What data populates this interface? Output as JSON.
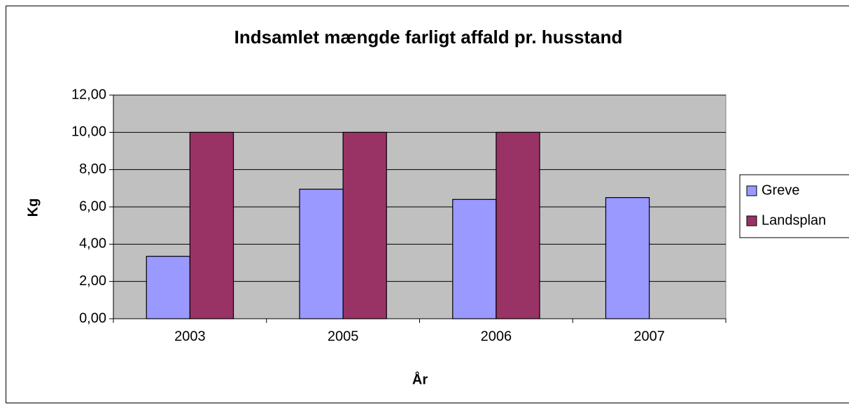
{
  "chart_data": {
    "type": "bar",
    "title": "Indsamlet mængde farligt affald pr. husstand",
    "y_label": "Kg",
    "x_label": "År",
    "categories": [
      "2003",
      "2005",
      "2006",
      "2007"
    ],
    "series": [
      {
        "name": "Greve",
        "color": "#9999ff",
        "values": [
          3.35,
          6.95,
          6.4,
          6.5
        ]
      },
      {
        "name": "Landsplan",
        "color": "#993366",
        "values": [
          10,
          10,
          10,
          null
        ]
      }
    ],
    "ylim": [
      0,
      12
    ],
    "yticks": [
      {
        "value": 0,
        "label": "0,00"
      },
      {
        "value": 2,
        "label": "2,00"
      },
      {
        "value": 4,
        "label": "4,00"
      },
      {
        "value": 6,
        "label": "6,00"
      },
      {
        "value": 8,
        "label": "8,00"
      },
      {
        "value": 10,
        "label": "10,00"
      },
      {
        "value": 12,
        "label": "12,00"
      }
    ],
    "grid": true,
    "plot_background": "#c0c0c0",
    "legend": "right"
  }
}
